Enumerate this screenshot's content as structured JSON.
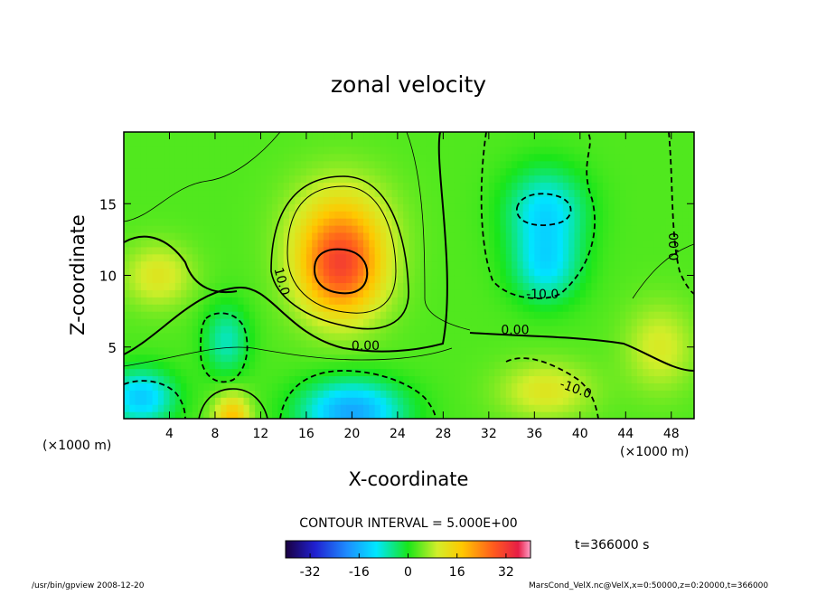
{
  "chart_data": {
    "type": "heatmap",
    "title": "zonal velocity",
    "xlabel": "X-coordinate",
    "ylabel": "Z-coordinate",
    "x_unit_left": "(×1000 m)",
    "x_unit_right": "(×1000 m)",
    "xlim": [
      0,
      50
    ],
    "ylim": [
      0,
      20
    ],
    "x_ticks": [
      4,
      8,
      12,
      16,
      20,
      24,
      28,
      32,
      36,
      40,
      44,
      48
    ],
    "y_ticks": [
      5,
      10,
      15
    ],
    "contour_interval_label": "CONTOUR INTERVAL = 5.000E+00",
    "time_label": "t=366000 s",
    "colorbar": {
      "ticks": [
        -32,
        -16,
        0,
        16,
        32
      ],
      "vmin": -40,
      "vmax": 40
    },
    "contour_labels": [
      {
        "text": "10.0",
        "x": 13.5,
        "z": 9.5,
        "rotate": 75
      },
      {
        "text": "0.00",
        "x": 21.2,
        "z": 4.8,
        "rotate": 0
      },
      {
        "text": "0.00",
        "x": 34.3,
        "z": 5.9,
        "rotate": 0
      },
      {
        "text": "-10.0",
        "x": 36.7,
        "z": 8.4,
        "rotate": 0
      },
      {
        "text": "-10.0",
        "x": 39.5,
        "z": 1.8,
        "rotate": 20
      },
      {
        "text": "0.00",
        "x": 48.6,
        "z": 12.0,
        "rotate": -90
      }
    ],
    "field_features": [
      {
        "x": 19,
        "z": 10.5,
        "value": 25,
        "sx": 3.8,
        "sz": 3.6
      },
      {
        "x": 19,
        "z": 14,
        "value": 8,
        "sx": 4.5,
        "sz": 3.5
      },
      {
        "x": 3,
        "z": 10,
        "value": 9,
        "sx": 3,
        "sz": 2.2
      },
      {
        "x": 9.5,
        "z": 0,
        "value": 16,
        "sx": 1.6,
        "sz": 1.8
      },
      {
        "x": 20,
        "z": 0.5,
        "value": -20,
        "sx": 4.5,
        "sz": 2.2
      },
      {
        "x": 1.5,
        "z": 1.5,
        "value": -16,
        "sx": 3,
        "sz": 2
      },
      {
        "x": 9,
        "z": 5.5,
        "value": -10,
        "sx": 2,
        "sz": 2.5
      },
      {
        "x": 37,
        "z": 14.5,
        "value": -14,
        "sx": 3.5,
        "sz": 3
      },
      {
        "x": 37,
        "z": 10.5,
        "value": -12,
        "sx": 3,
        "sz": 2.5
      },
      {
        "x": 37,
        "z": 2,
        "value": 9,
        "sx": 4,
        "sz": 2
      },
      {
        "x": 47,
        "z": 5,
        "value": 8,
        "sx": 3,
        "sz": 3
      }
    ]
  },
  "footer": {
    "left": "/usr/bin/gpview  2008-12-20",
    "right": "MarsCond_VelX.nc@VelX,x=0:50000,z=0:20000,t=366000"
  }
}
